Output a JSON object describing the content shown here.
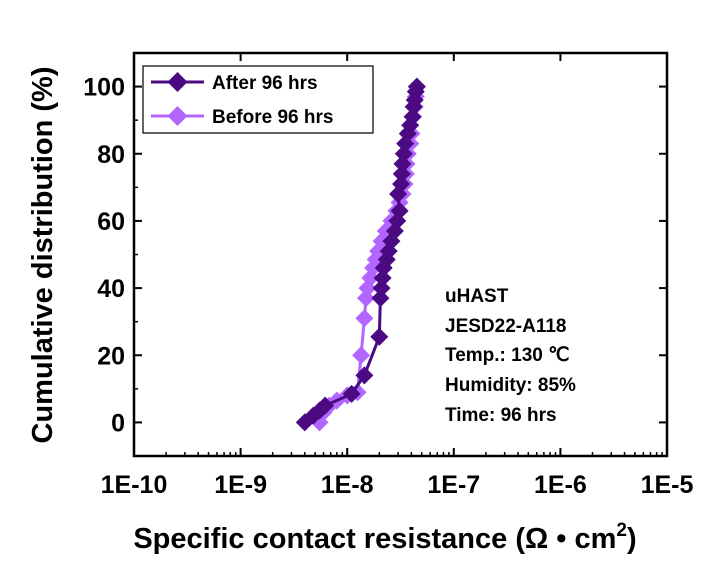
{
  "chart_data": {
    "type": "line",
    "xlabel": "Specific contact resistance (Ω • cm",
    "xlabel_superscript": "2",
    "xlabel_close": ")",
    "ylabel": "Cumulative distribution (%)",
    "x_scale": "log",
    "xlim": [
      1e-10,
      1e-05
    ],
    "ylim": [
      -10,
      110
    ],
    "x_ticks": [
      1e-10,
      1e-09,
      1e-08,
      1e-07,
      1e-06,
      1e-05
    ],
    "x_tick_labels": [
      "1E-10",
      "1E-9",
      "1E-8",
      "1E-7",
      "1E-6",
      "1E-5"
    ],
    "y_ticks": [
      0,
      20,
      40,
      60,
      80,
      100
    ],
    "y_tick_labels": [
      "0",
      "20",
      "40",
      "60",
      "80",
      "100"
    ],
    "grid": false,
    "legend_position": "top-left",
    "series": [
      {
        "name": "After 96 hrs",
        "color": "#4B0A82",
        "marker": "diamond",
        "x": [
          4e-09,
          4.8e-09,
          5.5e-09,
          6.2e-09,
          1.1e-08,
          1.45e-08,
          2e-08,
          2.05e-08,
          2.1e-08,
          2.15e-08,
          2.2e-08,
          2.35e-08,
          2.45e-08,
          2.6e-08,
          2.8e-08,
          2.95e-08,
          3.1e-08,
          3e-08,
          3.2e-08,
          3.25e-08,
          3.3e-08,
          3.4e-08,
          3.5e-08,
          3.7e-08,
          3.9e-08,
          4.1e-08,
          4.2e-08,
          4.3e-08,
          4.4e-08,
          4.5e-08
        ],
        "y": [
          0,
          2,
          3.5,
          5,
          8.5,
          14,
          25.5,
          37,
          40,
          43,
          46,
          48.5,
          51,
          54,
          57,
          60,
          63,
          68,
          71,
          74,
          77,
          80,
          83,
          86,
          88.5,
          91,
          94,
          96,
          98.5,
          100
        ]
      },
      {
        "name": "Before 96 hrs",
        "color": "#B266FF",
        "marker": "diamond",
        "x": [
          5.5e-09,
          6e-09,
          6.8e-09,
          8e-09,
          1e-08,
          1.25e-08,
          1.35e-08,
          1.45e-08,
          1.5e-08,
          1.55e-08,
          1.65e-08,
          1.75e-08,
          1.85e-08,
          1.95e-08,
          2.1e-08,
          2.3e-08,
          2.6e-08,
          2.9e-08,
          3.1e-08,
          3.3e-08,
          3.45e-08,
          3.55e-08,
          3.6e-08,
          3.7e-08,
          3.9e-08,
          4e-08,
          4.15e-08,
          4.3e-08,
          4.4e-08,
          4.5e-08
        ],
        "y": [
          0,
          3,
          5,
          6.5,
          8,
          9,
          20,
          31,
          37,
          40,
          43,
          46,
          48.5,
          51,
          54,
          57,
          60,
          63,
          65.5,
          68,
          71,
          74,
          77,
          80,
          83,
          86,
          91,
          94,
          97,
          100
        ]
      }
    ],
    "annotations": [
      "uHAST",
      "JESD22-A118",
      "Temp.: 130 ℃",
      "Humidity: 85%",
      "Time: 96 hrs"
    ]
  }
}
